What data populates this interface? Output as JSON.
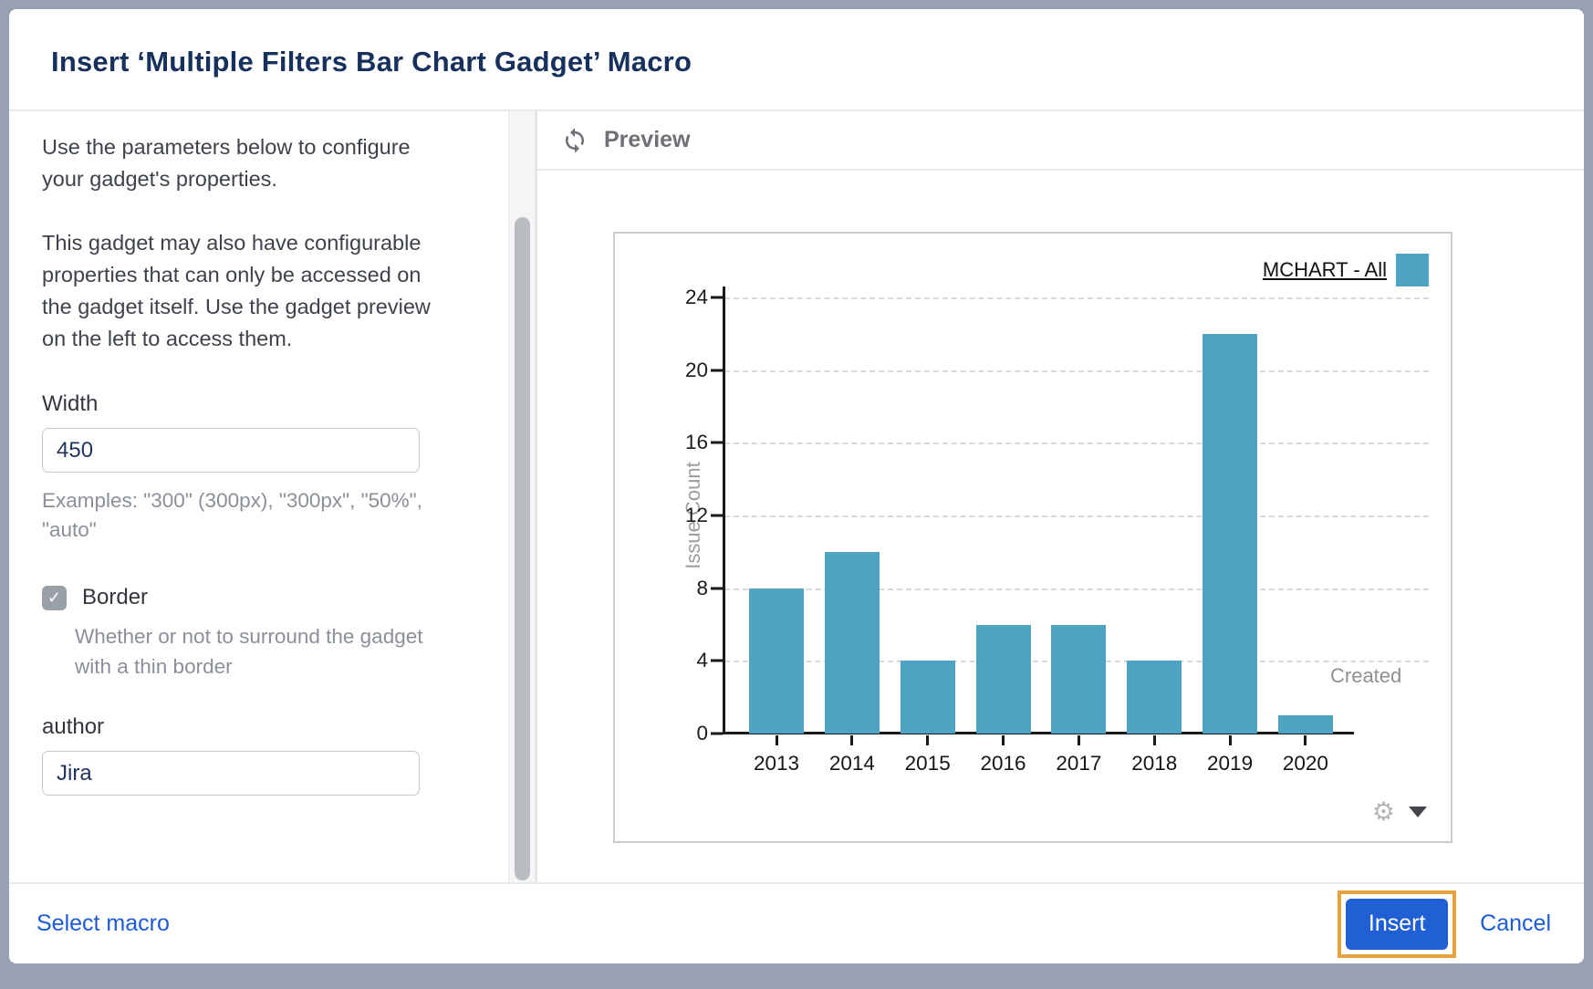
{
  "dialog": {
    "title": "Insert ‘Multiple Filters Bar Chart Gadget’ Macro"
  },
  "left_panel": {
    "intro_1": "Use the parameters below to configure your gadget's properties.",
    "intro_2": "This gadget may also have configurable properties that can only be accessed on the gadget itself. Use the gadget preview on the left to access them.",
    "width_field": {
      "label": "Width",
      "value": "450",
      "help": "Examples: \"300\" (300px), \"300px\", \"50%\", \"auto\""
    },
    "border_field": {
      "label": "Border",
      "checked": true,
      "check_glyph": "✓",
      "help": "Whether or not to surround the gadget with a thin border"
    },
    "author_field": {
      "label": "author",
      "value": "Jira"
    }
  },
  "preview": {
    "header": "Preview",
    "refresh_icon": "refresh-icon",
    "gear_glyph": "⚙"
  },
  "chart_data": {
    "type": "bar",
    "title": "",
    "categories": [
      "2013",
      "2014",
      "2015",
      "2016",
      "2017",
      "2018",
      "2019",
      "2020"
    ],
    "values": [
      8,
      10,
      4,
      6,
      6,
      4,
      22,
      1
    ],
    "series": [
      {
        "name": "MCHART - All",
        "values": [
          8,
          10,
          4,
          6,
          6,
          4,
          22,
          1
        ]
      }
    ],
    "legend": "MCHART - All",
    "legend_position": "top-right",
    "xlabel": "Created",
    "ylabel": "Issue Count",
    "ylim": [
      0,
      24
    ],
    "yticks": [
      0,
      4,
      8,
      12,
      16,
      20,
      24
    ],
    "grid": "horizontal dashed",
    "bar_color": "#4EA3C2"
  },
  "footer": {
    "select_macro_label": "Select macro",
    "insert_label": "Insert",
    "cancel_label": "Cancel"
  },
  "colors": {
    "bar_teal": "#4EA3C2",
    "link_blue": "#1d5bd6",
    "button_blue": "#2160d4",
    "highlight_orange": "#e8a13e",
    "title_navy": "#17305c"
  }
}
